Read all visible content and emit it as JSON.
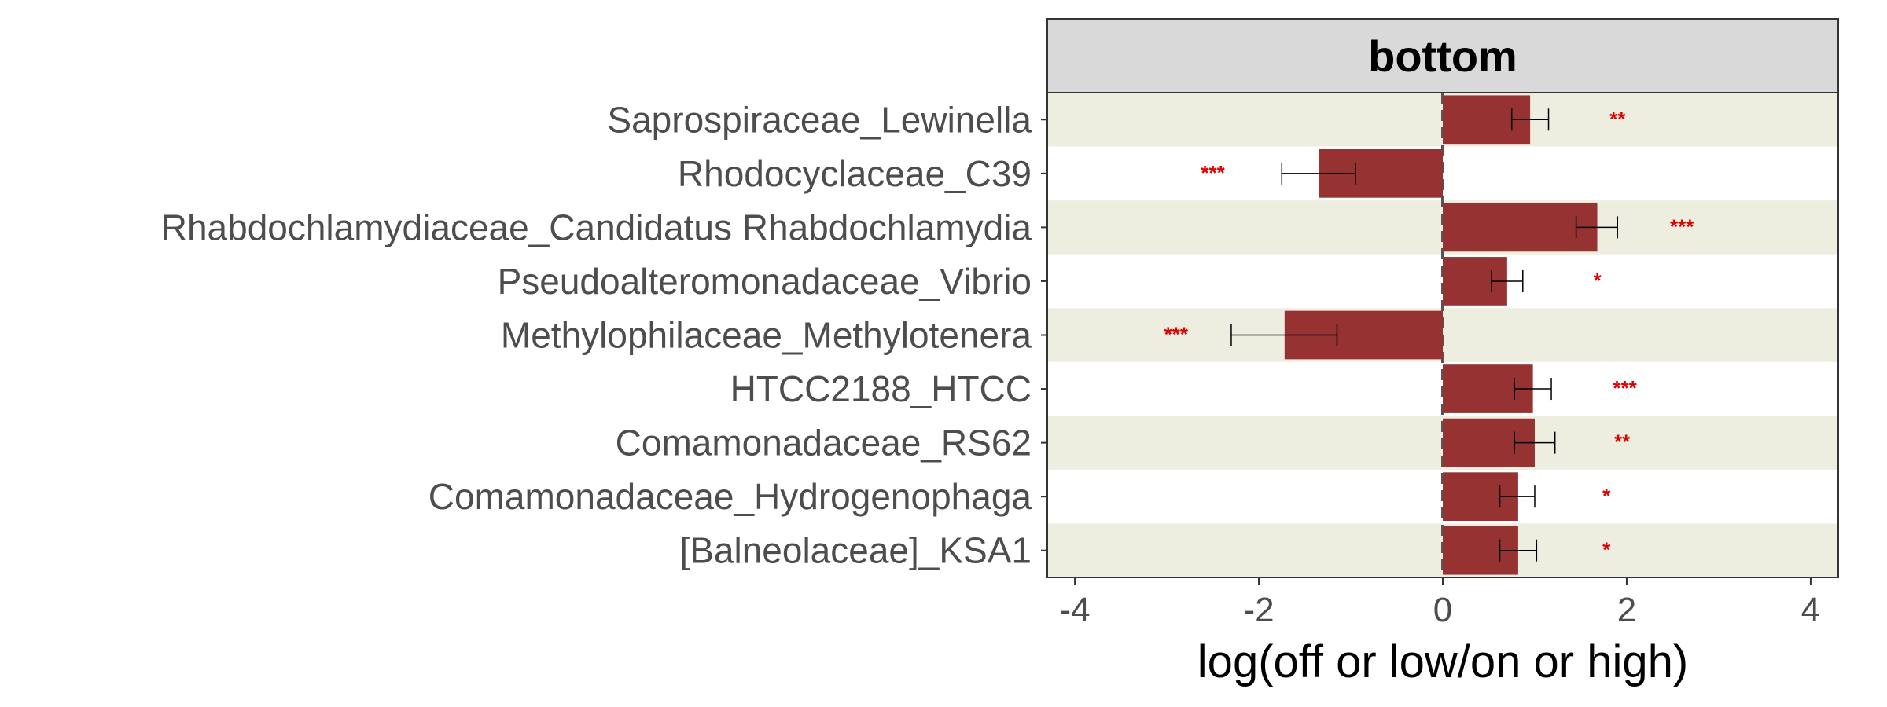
{
  "chart_data": {
    "type": "bar",
    "orientation": "horizontal",
    "facet": "bottom",
    "xlabel": "log(off or low/on or high)",
    "ylabel": "",
    "xlim": [
      -4.3,
      4.3
    ],
    "xticks": [
      -4,
      -2,
      0,
      2,
      4
    ],
    "xtick_labels": [
      "-4",
      "-2",
      "0",
      "2",
      "4"
    ],
    "categories": [
      "Saprospiraceae_Lewinella",
      "Rhodocyclaceae_C39",
      "Rhabdochlamydiaceae_Candidatus Rhabdochlamydia",
      "Pseudoalteromonadaceae_Vibrio",
      "Methylophilaceae_Methylotenera",
      "HTCC2188_HTCC",
      "Comamonadaceae_RS62",
      "Comamonadaceae_Hydrogenophaga",
      "[Balneolaceae]_KSA1"
    ],
    "values": [
      0.95,
      -1.35,
      1.68,
      0.7,
      -1.72,
      0.98,
      1.0,
      0.82,
      0.82
    ],
    "error_low": [
      0.75,
      -1.75,
      1.45,
      0.53,
      -2.3,
      0.78,
      0.78,
      0.62,
      0.62
    ],
    "error_high": [
      1.15,
      -0.95,
      1.9,
      0.87,
      -1.15,
      1.18,
      1.22,
      1.0,
      1.02
    ],
    "significance": [
      "**",
      "***",
      "***",
      "*",
      "***",
      "***",
      "**",
      "*",
      "*"
    ],
    "significance_x": [
      1.9,
      -2.5,
      2.6,
      1.68,
      -2.9,
      1.98,
      1.95,
      1.78,
      1.78
    ],
    "bar_color": "#963232",
    "significance_color": "#e00000",
    "band_color": "#eeeee0",
    "strip_color": "#d9d9d9",
    "zero_line": true,
    "grid": false,
    "legend": "none"
  }
}
